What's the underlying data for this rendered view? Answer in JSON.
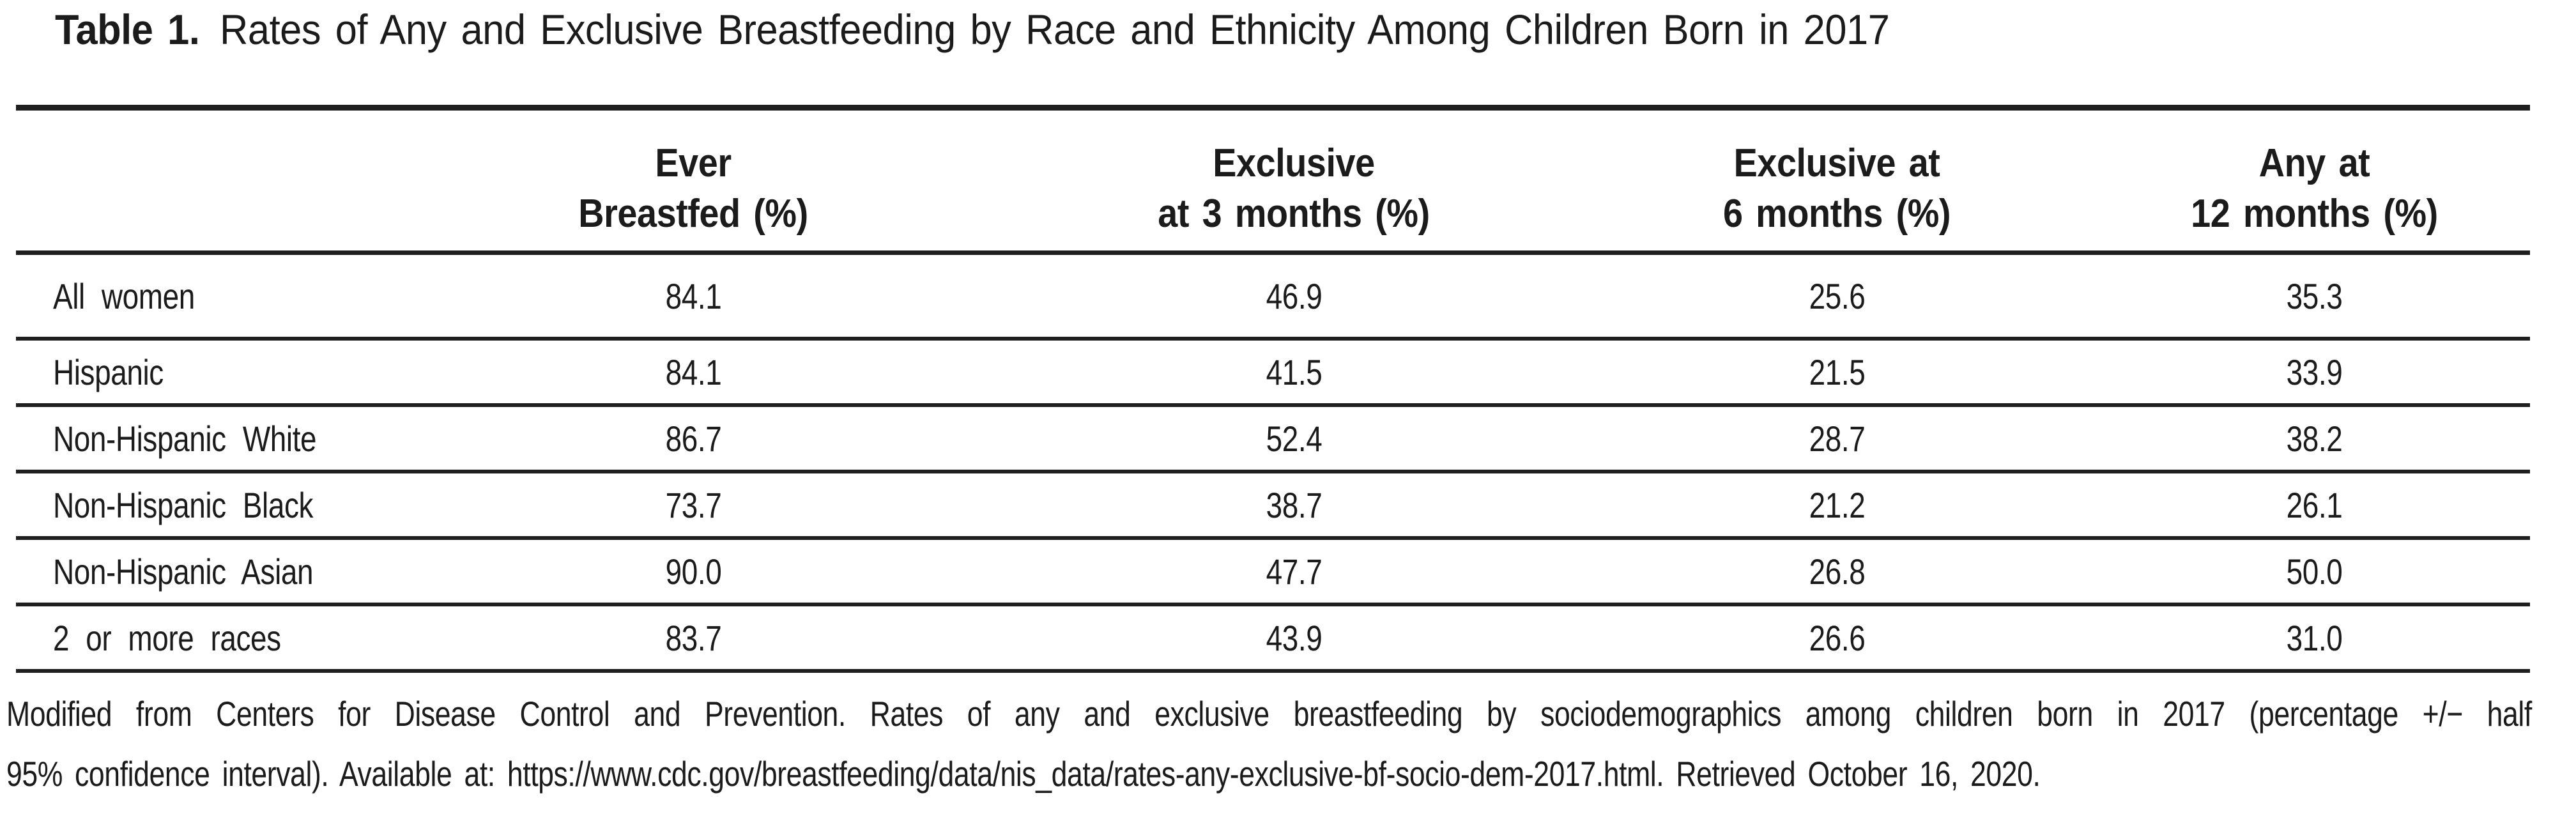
{
  "title": {
    "label": "Table 1.",
    "caption": "Rates of Any and Exclusive Breastfeeding by Race and Ethnicity Among Children Born in 2017"
  },
  "table": {
    "headers": [
      {
        "line1": "",
        "line2": ""
      },
      {
        "line1": "Ever",
        "line2": "Breastfed (%)"
      },
      {
        "line1": "Exclusive",
        "line2": "at 3 months (%)"
      },
      {
        "line1": "Exclusive at",
        "line2": "6 months (%)"
      },
      {
        "line1": "Any at",
        "line2": "12 months (%)"
      }
    ],
    "rows": [
      {
        "label": "All women",
        "values": [
          "84.1",
          "46.9",
          "25.6",
          "35.3"
        ]
      },
      {
        "label": "Hispanic",
        "values": [
          "84.1",
          "41.5",
          "21.5",
          "33.9"
        ]
      },
      {
        "label": "Non-Hispanic White",
        "values": [
          "86.7",
          "52.4",
          "28.7",
          "38.2"
        ]
      },
      {
        "label": "Non-Hispanic Black",
        "values": [
          "73.7",
          "38.7",
          "21.2",
          "26.1"
        ]
      },
      {
        "label": "Non-Hispanic Asian",
        "values": [
          "90.0",
          "47.7",
          "26.8",
          "50.0"
        ]
      },
      {
        "label": "2 or more races",
        "values": [
          "83.7",
          "43.9",
          "26.6",
          "31.0"
        ]
      }
    ]
  },
  "footnote": {
    "line1": "Modified from Centers for Disease Control and Prevention. Rates of any and exclusive breastfeeding by sociodemographics among children born in 2017 (percentage +/− half",
    "line2": "95% confidence interval). Available at: https://www.cdc.gov/breastfeeding/data/nis_data/rates-any-exclusive-bf-socio-dem-2017.html. Retrieved October 16, 2020."
  },
  "colors": {
    "text": "#1b1b1b",
    "rule": "#1f1f1f",
    "background": "#ffffff"
  }
}
